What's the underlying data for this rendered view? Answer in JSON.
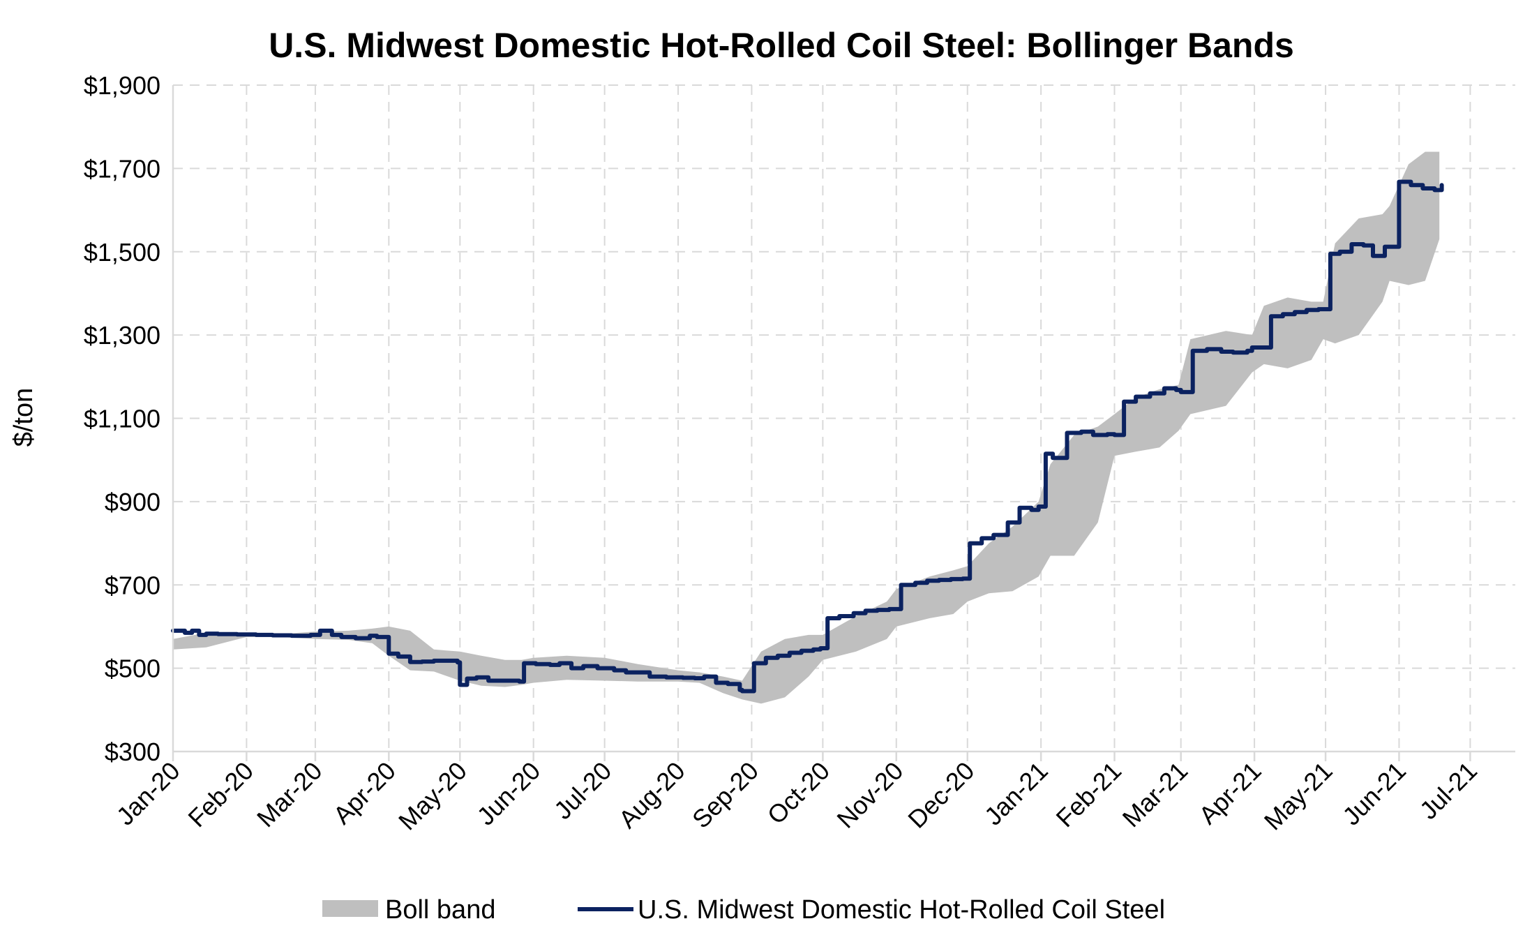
{
  "chart_data": {
    "type": "line",
    "title": "U.S. Midwest Domestic Hot-Rolled Coil Steel: Bollinger Bands",
    "xlabel": "",
    "ylabel": "$/ton",
    "ylim": [
      300,
      1900
    ],
    "y_ticks": [
      300,
      500,
      700,
      900,
      1100,
      1300,
      1500,
      1700,
      1900
    ],
    "y_tick_labels": [
      "$300",
      "$500",
      "$700",
      "$900",
      "$1,100",
      "$1,300",
      "$1,500",
      "$1,700",
      "$1,900"
    ],
    "x_ticks": [
      "2020-01-01",
      "2020-02-01",
      "2020-03-01",
      "2020-04-01",
      "2020-05-01",
      "2020-06-01",
      "2020-07-01",
      "2020-08-01",
      "2020-09-01",
      "2020-10-01",
      "2020-11-01",
      "2020-12-01",
      "2021-01-01",
      "2021-02-01",
      "2021-03-01",
      "2021-04-01",
      "2021-05-01",
      "2021-06-01",
      "2021-07-01"
    ],
    "x_tick_labels": [
      "Jan-20",
      "Feb-20",
      "Mar-20",
      "Apr-20",
      "May-20",
      "Jun-20",
      "Jul-20",
      "Aug-20",
      "Sep-20",
      "Oct-20",
      "Nov-20",
      "Dec-20",
      "Jan-21",
      "Feb-21",
      "Mar-21",
      "Apr-21",
      "May-21",
      "Jun-21",
      "Jul-21"
    ],
    "xlim": [
      "2020-01-01",
      "2021-07-20"
    ],
    "grid": true,
    "legend_position": "bottom",
    "series": [
      {
        "name": "Boll band",
        "type": "area-band",
        "color": "#bfbfbf",
        "x": [
          "2020-01-01",
          "2020-01-15",
          "2020-02-01",
          "2020-02-15",
          "2020-03-01",
          "2020-03-15",
          "2020-03-25",
          "2020-04-01",
          "2020-04-10",
          "2020-04-20",
          "2020-05-01",
          "2020-05-10",
          "2020-05-20",
          "2020-05-27",
          "2020-06-01",
          "2020-06-15",
          "2020-07-01",
          "2020-07-15",
          "2020-08-01",
          "2020-08-10",
          "2020-08-20",
          "2020-08-28",
          "2020-09-05",
          "2020-09-15",
          "2020-09-25",
          "2020-10-01",
          "2020-10-15",
          "2020-10-28",
          "2020-11-01",
          "2020-11-15",
          "2020-11-25",
          "2020-12-01",
          "2020-12-10",
          "2020-12-20",
          "2020-12-31",
          "2021-01-05",
          "2021-01-15",
          "2021-01-25",
          "2021-02-01",
          "2021-02-10",
          "2021-02-20",
          "2021-02-28",
          "2021-03-05",
          "2021-03-20",
          "2021-03-31",
          "2021-04-05",
          "2021-04-15",
          "2021-04-25",
          "2021-04-30",
          "2021-05-05",
          "2021-05-15",
          "2021-05-25",
          "2021-05-28",
          "2021-06-05",
          "2021-06-12",
          "2021-06-18"
        ],
        "upper": [
          570,
          585,
          585,
          582,
          588,
          590,
          595,
          600,
          590,
          545,
          540,
          530,
          520,
          520,
          525,
          530,
          525,
          510,
          495,
          490,
          480,
          470,
          540,
          570,
          580,
          580,
          625,
          660,
          690,
          720,
          735,
          745,
          800,
          840,
          900,
          990,
          1060,
          1080,
          1110,
          1150,
          1170,
          1180,
          1290,
          1310,
          1300,
          1370,
          1390,
          1380,
          1380,
          1520,
          1580,
          1590,
          1610,
          1710,
          1740,
          1740
        ],
        "lower": [
          545,
          550,
          575,
          575,
          570,
          568,
          560,
          530,
          495,
          492,
          470,
          458,
          455,
          460,
          465,
          472,
          470,
          468,
          468,
          465,
          440,
          425,
          415,
          430,
          480,
          520,
          540,
          570,
          600,
          620,
          630,
          660,
          680,
          685,
          720,
          770,
          770,
          850,
          1010,
          1020,
          1030,
          1070,
          1110,
          1130,
          1210,
          1230,
          1220,
          1240,
          1290,
          1280,
          1300,
          1380,
          1430,
          1420,
          1430,
          1530
        ]
      },
      {
        "name": "U.S. Midwest Domestic Hot-Rolled Coil Steel",
        "type": "step-line",
        "color": "#0b2260",
        "x": [
          "2020-01-01",
          "2020-01-06",
          "2020-01-09",
          "2020-01-12",
          "2020-01-15",
          "2020-01-20",
          "2020-01-28",
          "2020-02-05",
          "2020-02-12",
          "2020-02-20",
          "2020-02-26",
          "2020-02-28",
          "2020-03-03",
          "2020-03-08",
          "2020-03-12",
          "2020-03-18",
          "2020-03-24",
          "2020-03-27",
          "2020-04-01",
          "2020-04-05",
          "2020-04-10",
          "2020-04-15",
          "2020-04-20",
          "2020-04-25",
          "2020-04-30",
          "2020-05-01",
          "2020-05-04",
          "2020-05-08",
          "2020-05-13",
          "2020-05-18",
          "2020-05-26",
          "2020-05-28",
          "2020-06-02",
          "2020-06-08",
          "2020-06-12",
          "2020-06-17",
          "2020-06-22",
          "2020-06-28",
          "2020-07-05",
          "2020-07-10",
          "2020-07-15",
          "2020-07-20",
          "2020-07-27",
          "2020-08-03",
          "2020-08-08",
          "2020-08-12",
          "2020-08-17",
          "2020-08-22",
          "2020-08-27",
          "2020-08-28",
          "2020-09-02",
          "2020-09-07",
          "2020-09-12",
          "2020-09-17",
          "2020-09-22",
          "2020-09-27",
          "2020-09-30",
          "2020-10-03",
          "2020-10-08",
          "2020-10-14",
          "2020-10-19",
          "2020-10-24",
          "2020-10-29",
          "2020-11-03",
          "2020-11-09",
          "2020-11-14",
          "2020-11-19",
          "2020-11-24",
          "2020-11-29",
          "2020-12-02",
          "2020-12-07",
          "2020-12-12",
          "2020-12-18",
          "2020-12-23",
          "2020-12-28",
          "2020-12-31",
          "2021-01-03",
          "2021-01-06",
          "2021-01-12",
          "2021-01-18",
          "2021-01-23",
          "2021-01-29",
          "2021-02-01",
          "2021-02-05",
          "2021-02-10",
          "2021-02-16",
          "2021-02-22",
          "2021-02-27",
          "2021-03-01",
          "2021-03-06",
          "2021-03-12",
          "2021-03-18",
          "2021-03-23",
          "2021-03-29",
          "2021-03-31",
          "2021-04-02",
          "2021-04-08",
          "2021-04-13",
          "2021-04-18",
          "2021-04-23",
          "2021-04-28",
          "2021-04-30",
          "2021-05-03",
          "2021-05-07",
          "2021-05-12",
          "2021-05-17",
          "2021-05-21",
          "2021-05-26",
          "2021-05-27",
          "2021-06-01",
          "2021-06-06",
          "2021-06-11",
          "2021-06-16",
          "2021-06-19"
        ],
        "values": [
          590,
          585,
          590,
          580,
          583,
          582,
          581,
          580,
          579,
          578,
          578,
          580,
          590,
          580,
          575,
          572,
          578,
          575,
          535,
          528,
          515,
          516,
          518,
          518,
          514,
          460,
          475,
          478,
          470,
          470,
          468,
          512,
          510,
          508,
          512,
          500,
          505,
          500,
          495,
          490,
          490,
          480,
          478,
          477,
          476,
          480,
          465,
          462,
          448,
          445,
          512,
          525,
          530,
          537,
          542,
          545,
          548,
          620,
          625,
          632,
          638,
          640,
          642,
          700,
          705,
          710,
          712,
          714,
          715,
          800,
          812,
          820,
          850,
          885,
          880,
          888,
          1015,
          1005,
          1065,
          1068,
          1060,
          1062,
          1060,
          1140,
          1152,
          1160,
          1172,
          1168,
          1163,
          1262,
          1266,
          1260,
          1258,
          1262,
          1270,
          1270,
          1345,
          1350,
          1355,
          1360,
          1362,
          1362,
          1495,
          1500,
          1518,
          1515,
          1490,
          1512,
          1512,
          1668,
          1660,
          1652,
          1648,
          1660
        ]
      }
    ]
  }
}
